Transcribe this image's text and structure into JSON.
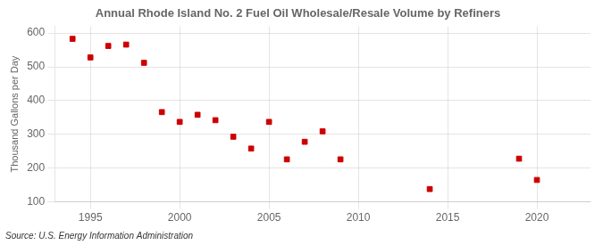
{
  "chart_data": {
    "type": "scatter",
    "title": "Annual Rhode Island No. 2 Fuel Oil Wholesale/Resale Volume by Refiners",
    "ylabel": "Thousand Gallons per Day",
    "annotations": [
      "Source: U.S. Energy Information Administration"
    ],
    "x": [
      1994,
      1995,
      1996,
      1997,
      1998,
      1999,
      2000,
      2001,
      2002,
      2003,
      2004,
      2005,
      2006,
      2007,
      2008,
      2009,
      2014,
      2019,
      2020
    ],
    "values": [
      583,
      528,
      562,
      566,
      512,
      366,
      337,
      358,
      342,
      293,
      258,
      337,
      226,
      278,
      309,
      226,
      138,
      228,
      165
    ],
    "xlim": [
      1993,
      2023
    ],
    "ylim": [
      100,
      620
    ],
    "xticks": [
      1995,
      2000,
      2005,
      2010,
      2015,
      2020
    ],
    "yticks": [
      100,
      200,
      300,
      400,
      500,
      600
    ],
    "color": "#cc0000",
    "marker": "square",
    "grid": true
  }
}
